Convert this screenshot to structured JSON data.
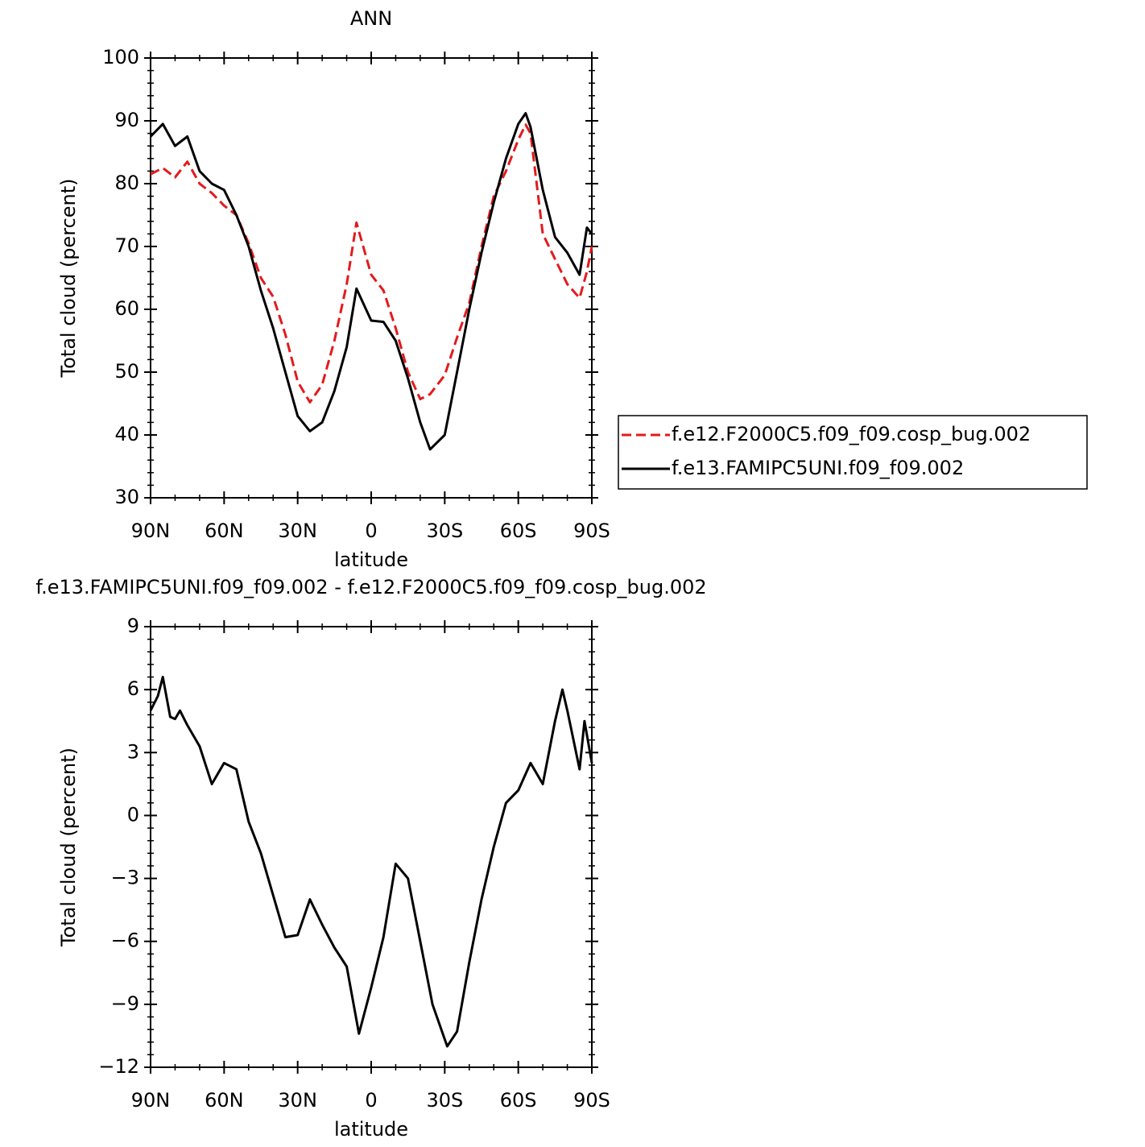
{
  "chart_data": [
    {
      "type": "line",
      "title": "ANN",
      "x_label": "latitude",
      "y_label": "Total cloud (percent)",
      "x": [
        90,
        85,
        80,
        75,
        70,
        65,
        60,
        55,
        50,
        45,
        40,
        35,
        30,
        25,
        20,
        15,
        10,
        6,
        0,
        -5,
        -10,
        -15,
        -20,
        -24,
        -30,
        -35,
        -40,
        -45,
        -50,
        -55,
        -60,
        -63,
        -65,
        -70,
        -75,
        -80,
        -85,
        -88,
        -90
      ],
      "series": [
        {
          "name": "f.e12.F2000C5.f09_f09.cosp_bug.002",
          "color": "#e41a1c",
          "line_style": "dashed",
          "values": [
            81.5,
            82.5,
            81,
            83.5,
            80,
            78.5,
            76.5,
            75,
            70.5,
            65,
            62,
            56,
            48.5,
            45.2,
            48,
            55,
            64,
            73.8,
            65.5,
            63,
            57,
            50,
            45.7,
            46.5,
            49.5,
            55.5,
            61,
            70,
            78,
            82,
            87,
            89.4,
            88,
            72,
            68,
            64,
            61.8,
            66,
            70
          ]
        },
        {
          "name": "f.e13.FAMIPC5UNI.f09_f09.002",
          "color": "#000000",
          "line_style": "solid",
          "values": [
            87.5,
            89.5,
            86,
            87.5,
            82,
            80,
            79,
            75,
            70,
            63,
            57,
            50,
            43,
            40.6,
            42,
            47,
            54,
            63.3,
            58.2,
            58,
            55,
            49,
            42,
            37.7,
            40,
            50,
            60,
            69,
            77,
            84,
            89.5,
            91.2,
            89,
            79,
            71.5,
            69,
            65.5,
            73,
            72
          ]
        }
      ],
      "xlim": [
        90,
        -90
      ],
      "xticks": [
        {
          "value": 90,
          "label": "90N"
        },
        {
          "value": 60,
          "label": "60N"
        },
        {
          "value": 30,
          "label": "30N"
        },
        0,
        {
          "value": -30,
          "label": "30S"
        },
        {
          "value": -60,
          "label": "60S"
        },
        {
          "value": -90,
          "label": "90S"
        }
      ],
      "ylim": [
        30,
        100
      ],
      "yticks": [
        30,
        40,
        50,
        60,
        70,
        80,
        90,
        100
      ],
      "legend": "right"
    },
    {
      "type": "line",
      "title": "f.e13.FAMIPC5UNI.f09_f09.002 - f.e12.F2000C5.f09_f09.cosp_bug.002",
      "x_label": "latitude",
      "y_label": "Total cloud (percent)",
      "x": [
        90,
        87,
        85,
        82,
        80,
        78,
        75,
        70,
        65,
        60,
        55,
        50,
        45,
        40,
        35,
        30,
        25,
        20,
        15,
        10,
        5,
        0,
        -5,
        -10,
        -15,
        -20,
        -25,
        -31,
        -35,
        -40,
        -45,
        -50,
        -55,
        -60,
        -65,
        -70,
        -75,
        -78,
        -80,
        -85,
        -87,
        -90
      ],
      "series": [
        {
          "color": "#000000",
          "line_style": "solid",
          "values": [
            5,
            5.7,
            6.6,
            4.7,
            4.6,
            5,
            4.3,
            3.3,
            1.5,
            2.5,
            2.2,
            -0.3,
            -1.8,
            -3.8,
            -5.8,
            -5.7,
            -4,
            -5.2,
            -6.3,
            -7.2,
            -10.4,
            -8.2,
            -5.8,
            -2.3,
            -3,
            -6,
            -9,
            -11,
            -10.3,
            -7,
            -4,
            -1.5,
            0.6,
            1.2,
            2.5,
            1.5,
            4.5,
            6,
            5,
            2.2,
            4.5,
            2.5
          ]
        }
      ],
      "xlim": [
        90,
        -90
      ],
      "xticks": [
        {
          "value": 90,
          "label": "90N"
        },
        {
          "value": 60,
          "label": "60N"
        },
        {
          "value": 30,
          "label": "30N"
        },
        0,
        {
          "value": -30,
          "label": "30S"
        },
        {
          "value": -60,
          "label": "60S"
        },
        {
          "value": -90,
          "label": "90S"
        }
      ],
      "ylim": [
        -12,
        9
      ],
      "yticks": [
        {
          "value": -12,
          "label": "−12"
        },
        {
          "value": -9,
          "label": "−9"
        },
        {
          "value": -6,
          "label": "−6"
        },
        {
          "value": -3,
          "label": "−3"
        },
        0,
        3,
        6,
        9
      ]
    }
  ]
}
